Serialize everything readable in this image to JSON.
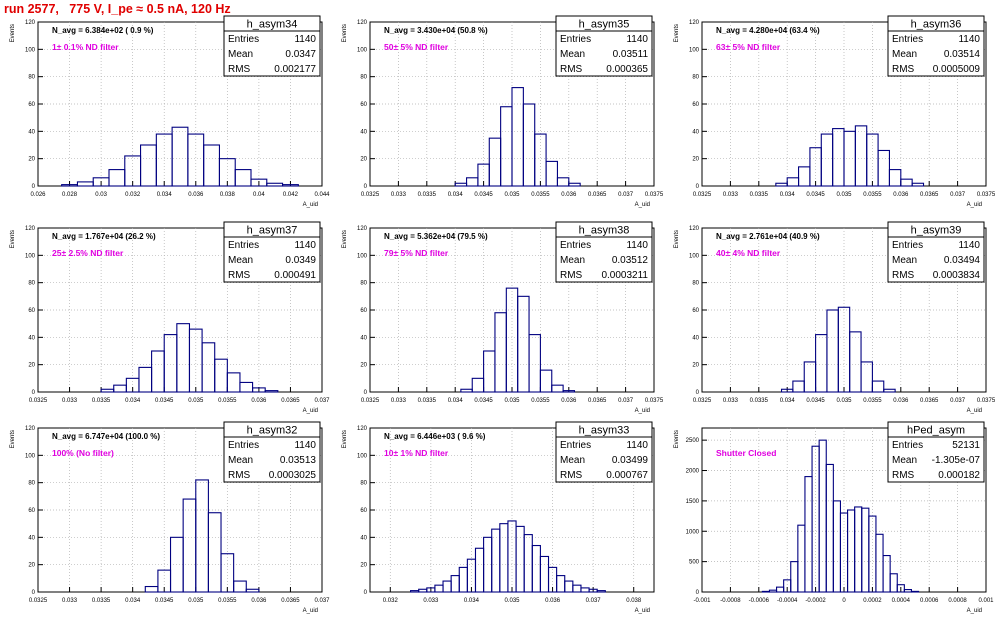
{
  "page": {
    "run_title": "run 2577,   775 V, I_pe ≈ 0.5 nA, 120 Hz"
  },
  "colors": {
    "title": "#e00000",
    "histogram": "#000080",
    "annotation": "#e000e0",
    "grid": "#b0b0b0",
    "axis": "#000000"
  },
  "chart_data": [
    {
      "type": "bar",
      "name": "h_asym34",
      "navg": "N_avg = 6.384e+02 ( 0.9 %)",
      "annotation": "1± 0.1% ND filter",
      "stats": [
        [
          "Entries",
          "1140"
        ],
        [
          "Mean",
          "0.0347"
        ],
        [
          "RMS",
          "0.002177"
        ]
      ],
      "xlabel": "A_uid",
      "ylabel": "Events",
      "xlim": [
        0.026,
        0.044
      ],
      "ylim": [
        0,
        120
      ],
      "xticks": [
        "0.026",
        "0.028",
        "0.03",
        "0.032",
        "0.034",
        "0.036",
        "0.038",
        "0.04",
        "0.042",
        "0.044"
      ],
      "yticks": [
        "0",
        "20",
        "40",
        "60",
        "80",
        "100",
        "120"
      ],
      "centers": [
        0.028,
        0.029,
        0.03,
        0.031,
        0.032,
        0.033,
        0.034,
        0.035,
        0.036,
        0.037,
        0.038,
        0.039,
        0.04,
        0.041,
        0.042
      ],
      "values": [
        1,
        3,
        6,
        12,
        22,
        30,
        38,
        43,
        38,
        30,
        20,
        12,
        5,
        2,
        1
      ],
      "grid": true,
      "legend": "top-right"
    },
    {
      "type": "bar",
      "name": "h_asym35",
      "navg": "N_avg = 3.430e+04 (50.8 %)",
      "annotation": "50± 5% ND filter",
      "stats": [
        [
          "Entries",
          "1140"
        ],
        [
          "Mean",
          "0.03511"
        ],
        [
          "RMS",
          "0.000365"
        ]
      ],
      "xlabel": "A_uid",
      "ylabel": "Events",
      "xlim": [
        0.0325,
        0.0375
      ],
      "ylim": [
        0,
        120
      ],
      "xticks": [
        "0.0325",
        "0.033",
        "0.0335",
        "0.034",
        "0.0345",
        "0.035",
        "0.0355",
        "0.036",
        "0.0365",
        "0.037",
        "0.0375"
      ],
      "yticks": [
        "0",
        "20",
        "40",
        "60",
        "80",
        "100",
        "120"
      ],
      "centers": [
        0.0341,
        0.0343,
        0.0345,
        0.0347,
        0.0349,
        0.0351,
        0.0353,
        0.0355,
        0.0357,
        0.0359,
        0.0361
      ],
      "values": [
        2,
        6,
        16,
        35,
        58,
        72,
        60,
        38,
        18,
        6,
        2
      ],
      "grid": true,
      "legend": "top-right"
    },
    {
      "type": "bar",
      "name": "h_asym36",
      "navg": "N_avg = 4.280e+04 (63.4 %)",
      "annotation": "63± 5% ND filter",
      "stats": [
        [
          "Entries",
          "1140"
        ],
        [
          "Mean",
          "0.03514"
        ],
        [
          "RMS",
          "0.0005009"
        ]
      ],
      "xlabel": "A_uid",
      "ylabel": "Events",
      "xlim": [
        0.0325,
        0.0375
      ],
      "ylim": [
        0,
        120
      ],
      "xticks": [
        "0.0325",
        "0.033",
        "0.0335",
        "0.034",
        "0.0345",
        "0.035",
        "0.0355",
        "0.036",
        "0.0365",
        "0.037",
        "0.0375"
      ],
      "yticks": [
        "0",
        "20",
        "40",
        "60",
        "80",
        "100",
        "120"
      ],
      "centers": [
        0.0339,
        0.0341,
        0.0343,
        0.0345,
        0.0347,
        0.0349,
        0.0351,
        0.0353,
        0.0355,
        0.0357,
        0.0359,
        0.0361,
        0.0363
      ],
      "values": [
        2,
        6,
        14,
        28,
        38,
        42,
        40,
        44,
        38,
        26,
        12,
        5,
        2
      ],
      "grid": true,
      "legend": "top-right"
    },
    {
      "type": "bar",
      "name": "h_asym37",
      "navg": "N_avg = 1.767e+04 (26.2 %)",
      "annotation": "25± 2.5% ND filter",
      "stats": [
        [
          "Entries",
          "1140"
        ],
        [
          "Mean",
          "0.0349"
        ],
        [
          "RMS",
          "0.000491"
        ]
      ],
      "xlabel": "A_uid",
      "ylabel": "Events",
      "xlim": [
        0.0325,
        0.037
      ],
      "ylim": [
        0,
        120
      ],
      "xticks": [
        "0.0325",
        "0.033",
        "0.0335",
        "0.034",
        "0.0345",
        "0.035",
        "0.0355",
        "0.036",
        "0.0365",
        "0.037"
      ],
      "yticks": [
        "0",
        "20",
        "40",
        "60",
        "80",
        "100",
        "120"
      ],
      "centers": [
        0.0336,
        0.0338,
        0.034,
        0.0342,
        0.0344,
        0.0346,
        0.0348,
        0.035,
        0.0352,
        0.0354,
        0.0356,
        0.0358,
        0.036,
        0.0362
      ],
      "values": [
        2,
        5,
        10,
        18,
        30,
        42,
        50,
        46,
        36,
        24,
        14,
        7,
        3,
        1
      ],
      "grid": true,
      "legend": "top-right"
    },
    {
      "type": "bar",
      "name": "h_asym38",
      "navg": "N_avg = 5.362e+04 (79.5 %)",
      "annotation": "79± 5% ND filter",
      "stats": [
        [
          "Entries",
          "1140"
        ],
        [
          "Mean",
          "0.03512"
        ],
        [
          "RMS",
          "0.0003211"
        ]
      ],
      "xlabel": "A_uid",
      "ylabel": "Events",
      "xlim": [
        0.0325,
        0.0375
      ],
      "ylim": [
        0,
        120
      ],
      "xticks": [
        "0.0325",
        "0.033",
        "0.0335",
        "0.034",
        "0.0345",
        "0.035",
        "0.0355",
        "0.036",
        "0.0365",
        "0.037",
        "0.0375"
      ],
      "yticks": [
        "0",
        "20",
        "40",
        "60",
        "80",
        "100",
        "120"
      ],
      "centers": [
        0.0342,
        0.0344,
        0.0346,
        0.0348,
        0.035,
        0.0352,
        0.0354,
        0.0356,
        0.0358,
        0.036
      ],
      "values": [
        2,
        10,
        30,
        58,
        76,
        70,
        42,
        16,
        5,
        1
      ],
      "grid": true,
      "legend": "top-right"
    },
    {
      "type": "bar",
      "name": "h_asym39",
      "navg": "N_avg = 2.761e+04 (40.9 %)",
      "annotation": "40± 4% ND filter",
      "stats": [
        [
          "Entries",
          "1140"
        ],
        [
          "Mean",
          "0.03494"
        ],
        [
          "RMS",
          "0.0003834"
        ]
      ],
      "xlabel": "A_uid",
      "ylabel": "Events",
      "xlim": [
        0.0325,
        0.0375
      ],
      "ylim": [
        0,
        120
      ],
      "xticks": [
        "0.0325",
        "0.033",
        "0.0335",
        "0.034",
        "0.0345",
        "0.035",
        "0.0355",
        "0.036",
        "0.0365",
        "0.037",
        "0.0375"
      ],
      "yticks": [
        "0",
        "20",
        "40",
        "60",
        "80",
        "100",
        "120"
      ],
      "centers": [
        0.034,
        0.0342,
        0.0344,
        0.0346,
        0.0348,
        0.035,
        0.0352,
        0.0354,
        0.0356,
        0.0358
      ],
      "values": [
        2,
        8,
        22,
        42,
        60,
        62,
        44,
        22,
        8,
        2
      ],
      "grid": true,
      "legend": "top-right"
    },
    {
      "type": "bar",
      "name": "h_asym32",
      "navg": "N_avg = 6.747e+04 (100.0 %)",
      "annotation": "100% (No filter)",
      "stats": [
        [
          "Entries",
          "1140"
        ],
        [
          "Mean",
          "0.03513"
        ],
        [
          "RMS",
          "0.0003025"
        ]
      ],
      "xlabel": "A_uid",
      "ylabel": "Events",
      "xlim": [
        0.0325,
        0.037
      ],
      "ylim": [
        0,
        120
      ],
      "xticks": [
        "0.0325",
        "0.033",
        "0.0335",
        "0.034",
        "0.0345",
        "0.035",
        "0.0355",
        "0.036",
        "0.0365",
        "0.037"
      ],
      "yticks": [
        "0",
        "20",
        "40",
        "60",
        "80",
        "100",
        "120"
      ],
      "centers": [
        0.0343,
        0.0345,
        0.0347,
        0.0349,
        0.0351,
        0.0353,
        0.0355,
        0.0357,
        0.0359
      ],
      "values": [
        4,
        16,
        40,
        68,
        82,
        58,
        28,
        8,
        2
      ],
      "grid": true,
      "legend": "top-right"
    },
    {
      "type": "bar",
      "name": "h_asym33",
      "navg": "N_avg = 6.446e+03 ( 9.6 %)",
      "annotation": "10± 1% ND filter",
      "stats": [
        [
          "Entries",
          "1140"
        ],
        [
          "Mean",
          "0.03499"
        ],
        [
          "RMS",
          "0.000767"
        ]
      ],
      "xlabel": "A_uid",
      "ylabel": "Events",
      "xlim": [
        0.0315,
        0.0385
      ],
      "ylim": [
        0,
        120
      ],
      "xticks": [
        "0.032",
        "0.033",
        "0.034",
        "0.035",
        "0.036",
        "0.037",
        "0.038"
      ],
      "yticks": [
        "0",
        "20",
        "40",
        "60",
        "80",
        "100",
        "120"
      ],
      "centers": [
        0.0326,
        0.0328,
        0.033,
        0.0332,
        0.0334,
        0.0336,
        0.0338,
        0.034,
        0.0342,
        0.0344,
        0.0346,
        0.0348,
        0.035,
        0.0352,
        0.0354,
        0.0356,
        0.0358,
        0.036,
        0.0362,
        0.0364,
        0.0366,
        0.0368,
        0.037,
        0.0372
      ],
      "values": [
        1,
        2,
        3,
        5,
        8,
        12,
        18,
        24,
        32,
        40,
        46,
        50,
        52,
        48,
        42,
        34,
        26,
        18,
        12,
        8,
        5,
        3,
        2,
        1
      ],
      "grid": true,
      "legend": "top-right"
    },
    {
      "type": "bar",
      "name": "hPed_asym",
      "navg": "",
      "annotation": "Shutter Closed",
      "stats": [
        [
          "Entries",
          "52131"
        ],
        [
          "Mean",
          "-1.305e-07"
        ],
        [
          "RMS",
          "0.000182"
        ]
      ],
      "xlabel": "A_uid",
      "ylabel": "Events",
      "xlim": [
        -0.001,
        0.001
      ],
      "ylim": [
        0,
        2700
      ],
      "xticks": [
        "-0.001",
        "-0.0008",
        "-0.0006",
        "-0.0004",
        "-0.0002",
        "0",
        "0.0002",
        "0.0004",
        "0.0006",
        "0.0008",
        "0.001"
      ],
      "yticks": [
        "0",
        "500",
        "1000",
        "1500",
        "2000",
        "2500"
      ],
      "centers": [
        -0.00055,
        -0.0005,
        -0.00045,
        -0.0004,
        -0.00035,
        -0.0003,
        -0.00025,
        -0.0002,
        -0.00015,
        -0.0001,
        -5e-05,
        0,
        5e-05,
        0.0001,
        0.00015,
        0.0002,
        0.00025,
        0.0003,
        0.00035,
        0.0004,
        0.00045,
        0.0005
      ],
      "values": [
        10,
        30,
        80,
        200,
        500,
        1100,
        1900,
        2400,
        2500,
        2100,
        1500,
        1300,
        1350,
        1400,
        1380,
        1250,
        950,
        600,
        300,
        120,
        40,
        10
      ],
      "grid": true,
      "legend": "top-right"
    }
  ]
}
